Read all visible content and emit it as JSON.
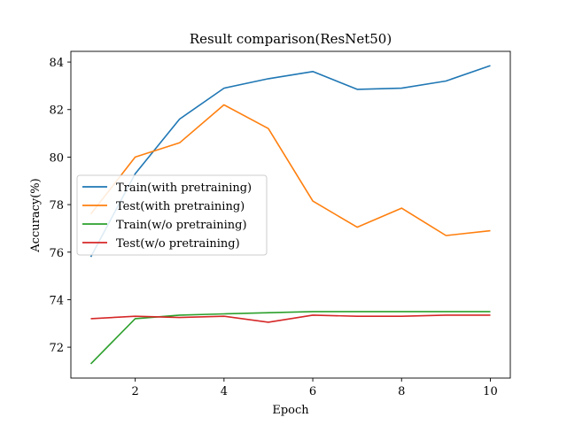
{
  "chart_data": {
    "type": "line",
    "title": "Result comparison(ResNet50)",
    "xlabel": "Epoch",
    "ylabel": "Accuracy(%)",
    "xlim": [
      0.55,
      10.45
    ],
    "ylim": [
      70.7,
      84.45
    ],
    "xticks": [
      2,
      4,
      6,
      8,
      10
    ],
    "yticks": [
      72,
      74,
      76,
      78,
      80,
      82,
      84
    ],
    "x": [
      1,
      2,
      3,
      4,
      5,
      6,
      7,
      8,
      9,
      10
    ],
    "legend_position": "center-left",
    "series": [
      {
        "name": "Train(with pretraining)",
        "color": "#1f77b4",
        "values": [
          75.8,
          79.3,
          81.6,
          82.9,
          83.3,
          83.6,
          82.85,
          82.9,
          83.2,
          83.85
        ]
      },
      {
        "name": "Test(with pretraining)",
        "color": "#ff7f0e",
        "values": [
          77.6,
          80.0,
          80.6,
          82.2,
          81.2,
          78.15,
          77.05,
          77.85,
          76.7,
          76.9
        ]
      },
      {
        "name": "Train(w/o pretraining)",
        "color": "#2ca02c",
        "values": [
          71.3,
          73.2,
          73.35,
          73.4,
          73.45,
          73.5,
          73.5,
          73.5,
          73.5,
          73.5
        ]
      },
      {
        "name": "Test(w/o pretraining)",
        "color": "#d62728",
        "values": [
          73.2,
          73.3,
          73.25,
          73.3,
          73.05,
          73.35,
          73.3,
          73.3,
          73.35,
          73.35
        ]
      }
    ]
  }
}
